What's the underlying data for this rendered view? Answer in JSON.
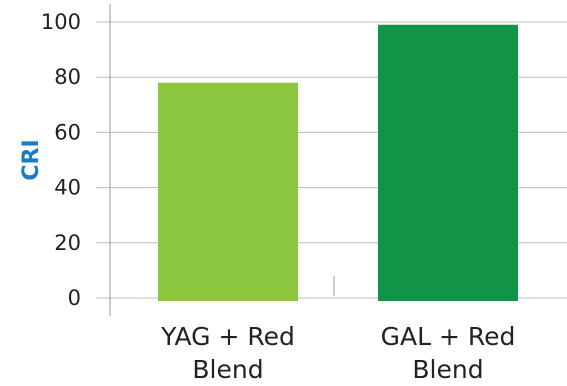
{
  "chart_data": {
    "type": "bar",
    "categories": [
      [
        "YAG + Red",
        "Blend"
      ],
      [
        "GAL + Red",
        "Blend"
      ]
    ],
    "values": [
      78,
      99
    ],
    "ylabel": "CRI",
    "xlabel": "",
    "ylim": [
      0,
      100
    ],
    "yticks": [
      0,
      20,
      40,
      60,
      80,
      100
    ],
    "grid": true,
    "bar_colors": [
      "#8dc63f",
      "#109447"
    ],
    "grid_color": "#bdbdbd",
    "axis_color": "#9a9a9a",
    "ylabel_color": "#1a7bc0"
  }
}
